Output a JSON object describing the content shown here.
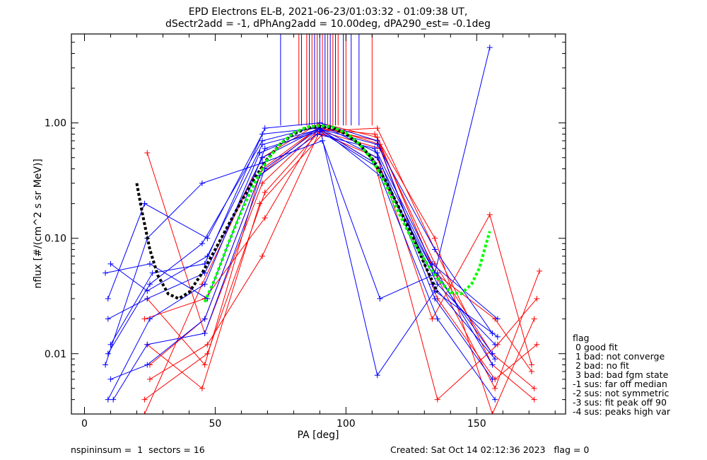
{
  "chart_data": {
    "type": "line",
    "title_line1": "EPD Electrons EL-B, 2021-06-23/01:03:32 - 01:09:38 UT,",
    "title_line2": "dSectr2add = -1, dPhAng2add = 10.00deg, dPA290_est=  -0.1deg",
    "xlabel": "PA [deg]",
    "ylabel": "nflux [#/(cm^2 s sr MeV)]",
    "xlim": [
      -5,
      184
    ],
    "ylim": [
      0.003,
      5.9
    ],
    "yscale": "log",
    "xticks": [
      "0",
      "50",
      "100",
      "150"
    ],
    "xtick_values": [
      0,
      50,
      100,
      150
    ],
    "yticks": [
      "0.01",
      "0.10",
      "1.00"
    ],
    "ytick_values": [
      0.01,
      0.1,
      1.0
    ],
    "colors": {
      "blue": "#0000ff",
      "red": "#ff0000",
      "fit": "#00ff00",
      "median": "#000000"
    },
    "series_blue": [
      [
        [
          9,
          0.02
        ],
        [
          24,
          0.03
        ],
        [
          46,
          0.05
        ],
        [
          68,
          0.5
        ],
        [
          90,
          0.9
        ],
        [
          112,
          0.5
        ],
        [
          134,
          0.05
        ],
        [
          156,
          0.01
        ]
      ],
      [
        [
          8,
          0.05
        ],
        [
          25,
          0.06
        ],
        [
          47,
          0.03
        ],
        [
          69,
          0.6
        ],
        [
          90,
          0.85
        ],
        [
          113,
          0.4
        ],
        [
          135,
          0.04
        ],
        [
          157,
          0.012
        ]
      ],
      [
        [
          10,
          0.006
        ],
        [
          24,
          0.008
        ],
        [
          46,
          0.02
        ],
        [
          67,
          0.35
        ],
        [
          89,
          0.8
        ],
        [
          111,
          0.6
        ],
        [
          134,
          0.03
        ],
        [
          156,
          0.006
        ]
      ],
      [
        [
          9,
          0.01
        ],
        [
          25,
          0.04
        ],
        [
          45,
          0.09
        ],
        [
          68,
          0.7
        ],
        [
          91,
          0.95
        ],
        [
          112,
          0.55
        ],
        [
          133,
          0.06
        ],
        [
          158,
          0.02
        ]
      ],
      [
        [
          11,
          0.004
        ],
        [
          24,
          0.012
        ],
        [
          46,
          0.015
        ],
        [
          69,
          0.4
        ],
        [
          90,
          0.9
        ],
        [
          113,
          0.35
        ],
        [
          135,
          0.02
        ],
        [
          157,
          0.004
        ]
      ],
      [
        [
          9,
          0.03
        ],
        [
          23,
          0.2
        ],
        [
          47,
          0.1
        ],
        [
          68,
          0.8
        ],
        [
          89,
          0.9
        ],
        [
          112,
          0.65
        ],
        [
          134,
          0.08
        ],
        [
          156,
          0.015
        ]
      ],
      [
        [
          10,
          0.012
        ],
        [
          26,
          0.05
        ],
        [
          46,
          0.06
        ],
        [
          69,
          0.9
        ],
        [
          90,
          1.0
        ],
        [
          112,
          0.7
        ],
        [
          133,
          0.04
        ],
        [
          157,
          0.009
        ]
      ],
      [
        [
          8,
          0.008
        ],
        [
          24,
          0.1
        ],
        [
          45,
          0.3
        ],
        [
          68,
          0.45
        ],
        [
          91,
          0.7
        ],
        [
          113,
          0.03
        ],
        [
          135,
          0.05
        ],
        [
          156,
          0.008
        ]
      ],
      [
        [
          9,
          0.004
        ],
        [
          25,
          0.02
        ],
        [
          46,
          0.04
        ],
        [
          67,
          0.55
        ],
        [
          90,
          0.9
        ],
        [
          112,
          0.0065
        ],
        [
          134,
          0.035
        ],
        [
          158,
          0.014
        ]
      ],
      [
        [
          10,
          0.06
        ],
        [
          24,
          0.035
        ],
        [
          47,
          0.07
        ],
        [
          68,
          0.65
        ],
        [
          90,
          0.88
        ],
        [
          111,
          0.45
        ],
        [
          134,
          0.05
        ],
        [
          155,
          4.5
        ]
      ]
    ],
    "series_red": [
      [
        [
          24,
          0.55
        ],
        [
          46,
          0.015
        ],
        [
          68,
          0.3
        ],
        [
          90,
          0.9
        ],
        [
          112,
          0.7
        ],
        [
          134,
          0.06
        ],
        [
          156,
          0.01
        ],
        [
          172,
          0.005
        ]
      ],
      [
        [
          23,
          0.004
        ],
        [
          47,
          0.01
        ],
        [
          69,
          0.25
        ],
        [
          90,
          0.85
        ],
        [
          113,
          0.6
        ],
        [
          135,
          0.03
        ],
        [
          157,
          0.006
        ],
        [
          173,
          0.012
        ]
      ],
      [
        [
          25,
          0.008
        ],
        [
          46,
          0.02
        ],
        [
          68,
          0.4
        ],
        [
          89,
          0.9
        ],
        [
          111,
          0.8
        ],
        [
          134,
          0.1
        ],
        [
          156,
          0.003
        ],
        [
          172,
          0.02
        ]
      ],
      [
        [
          24,
          0.012
        ],
        [
          45,
          0.005
        ],
        [
          67,
          0.2
        ],
        [
          91,
          0.8
        ],
        [
          112,
          0.5
        ],
        [
          133,
          0.02
        ],
        [
          155,
          0.16
        ],
        [
          171,
          0.008
        ]
      ],
      [
        [
          23,
          0.02
        ],
        [
          46,
          0.03
        ],
        [
          69,
          0.15
        ],
        [
          90,
          0.95
        ],
        [
          113,
          0.65
        ],
        [
          135,
          0.045
        ],
        [
          157,
          0.005
        ],
        [
          174,
          0.052
        ]
      ],
      [
        [
          25,
          0.006
        ],
        [
          47,
          0.012
        ],
        [
          68,
          0.07
        ],
        [
          90,
          0.85
        ],
        [
          112,
          0.9
        ],
        [
          134,
          0.08
        ],
        [
          156,
          0.008
        ],
        [
          172,
          0.004
        ]
      ],
      [
        [
          24,
          0.03
        ],
        [
          46,
          0.008
        ],
        [
          67,
          0.35
        ],
        [
          89,
          0.9
        ],
        [
          111,
          0.45
        ],
        [
          135,
          0.004
        ],
        [
          158,
          0.012
        ],
        [
          173,
          0.03
        ]
      ],
      [
        [
          23,
          0.003
        ],
        [
          45,
          0.04
        ],
        [
          68,
          0.5
        ],
        [
          90,
          1.0
        ],
        [
          112,
          0.75
        ],
        [
          134,
          0.05
        ],
        [
          157,
          0.02
        ],
        [
          171,
          0.007
        ]
      ]
    ],
    "spikes_blue": [
      75,
      83,
      86,
      88,
      90,
      92,
      94,
      96,
      99,
      102,
      105
    ],
    "spikes_red": [
      82,
      85,
      87,
      89,
      91,
      93,
      95,
      97,
      100,
      110
    ],
    "fit_curve": [
      [
        46,
        0.028
      ],
      [
        50,
        0.045
      ],
      [
        55,
        0.09
      ],
      [
        60,
        0.17
      ],
      [
        65,
        0.3
      ],
      [
        70,
        0.48
      ],
      [
        75,
        0.66
      ],
      [
        80,
        0.82
      ],
      [
        85,
        0.92
      ],
      [
        90,
        0.95
      ],
      [
        95,
        0.92
      ],
      [
        100,
        0.82
      ],
      [
        105,
        0.66
      ],
      [
        110,
        0.48
      ],
      [
        115,
        0.3
      ],
      [
        120,
        0.17
      ],
      [
        125,
        0.1
      ],
      [
        130,
        0.065
      ],
      [
        135,
        0.045
      ],
      [
        140,
        0.034
      ],
      [
        144,
        0.033
      ],
      [
        148,
        0.04
      ],
      [
        151,
        0.055
      ],
      [
        153,
        0.08
      ],
      [
        155,
        0.115
      ]
    ],
    "median_curve": [
      [
        20,
        0.3
      ],
      [
        22,
        0.17
      ],
      [
        25,
        0.08
      ],
      [
        28,
        0.048
      ],
      [
        32,
        0.033
      ],
      [
        36,
        0.03
      ],
      [
        40,
        0.034
      ],
      [
        45,
        0.05
      ],
      [
        50,
        0.08
      ],
      [
        55,
        0.13
      ],
      [
        60,
        0.21
      ],
      [
        65,
        0.33
      ],
      [
        70,
        0.49
      ],
      [
        75,
        0.66
      ],
      [
        80,
        0.8
      ],
      [
        85,
        0.9
      ],
      [
        90,
        0.93
      ],
      [
        95,
        0.9
      ],
      [
        100,
        0.8
      ],
      [
        105,
        0.66
      ],
      [
        110,
        0.49
      ],
      [
        115,
        0.32
      ],
      [
        120,
        0.19
      ],
      [
        125,
        0.11
      ],
      [
        130,
        0.06
      ],
      [
        135,
        0.034
      ]
    ]
  },
  "legend": {
    "title": "flag",
    "items": [
      " 0 good fit",
      " 1 bad: not converge",
      " 2 bad: no fit",
      " 3 bad: bad fgm state",
      "-1 sus: far off median",
      "-2 sus: not symmetric",
      "-3 sus: fit peak off 90",
      "-4 sus: peaks high var"
    ]
  },
  "footer": {
    "left": "nspininsum =  1  sectors = 16",
    "right": "Created: Sat Oct 14 02:12:36 2023   flag = 0"
  }
}
